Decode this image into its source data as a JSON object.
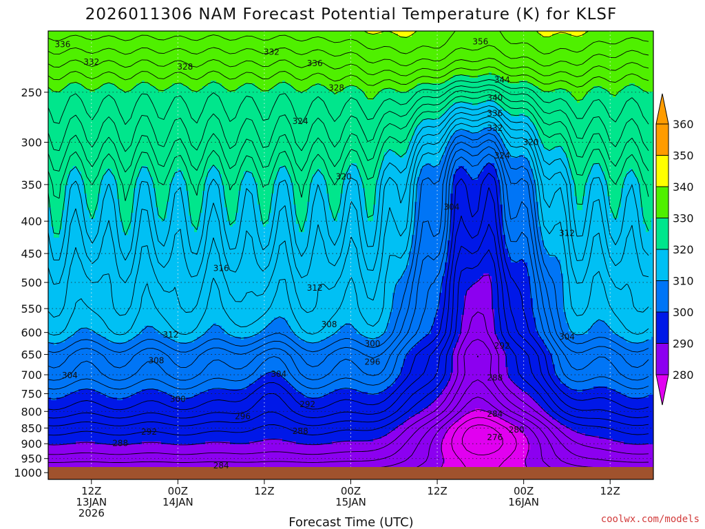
{
  "chart_data": {
    "type": "heatmap",
    "title": "2026011306 NAM Forecast Potential Temperature (K) for KLSF",
    "xlabel": "Forecast Time (UTC)",
    "ylabel": "",
    "y_axis": {
      "scale": "log",
      "inverted": true,
      "range": [
        200,
        1025
      ],
      "ticks": [
        250,
        300,
        350,
        400,
        450,
        500,
        550,
        600,
        650,
        700,
        750,
        800,
        850,
        900,
        950,
        1000
      ]
    },
    "x_axis": {
      "range_hours": [
        0,
        84
      ],
      "ticks": [
        {
          "hour": 6,
          "lines": [
            "12Z",
            "13JAN",
            "2026"
          ]
        },
        {
          "hour": 18,
          "lines": [
            "00Z",
            "14JAN"
          ]
        },
        {
          "hour": 30,
          "lines": [
            "12Z"
          ]
        },
        {
          "hour": 42,
          "lines": [
            "00Z",
            "15JAN"
          ]
        },
        {
          "hour": 54,
          "lines": [
            "12Z"
          ]
        },
        {
          "hour": 66,
          "lines": [
            "00Z",
            "16JAN"
          ]
        },
        {
          "hour": 78,
          "lines": [
            "12Z"
          ]
        }
      ]
    },
    "grid": true,
    "colorbar": {
      "placement": "right",
      "ticks": [
        360,
        350,
        340,
        330,
        320,
        310,
        300,
        290,
        280
      ],
      "bins": [
        {
          "from": 350,
          "to": 360,
          "color": "#ff9c00"
        },
        {
          "from": 340,
          "to": 350,
          "color": "#ffff00"
        },
        {
          "from": 330,
          "to": 340,
          "color": "#4ff000"
        },
        {
          "from": 320,
          "to": 330,
          "color": "#00e68c"
        },
        {
          "from": 310,
          "to": 320,
          "color": "#00c0f4"
        },
        {
          "from": 300,
          "to": 310,
          "color": "#0075f6"
        },
        {
          "from": 290,
          "to": 300,
          "color": "#0018e8"
        },
        {
          "from": 280,
          "to": 290,
          "color": "#8c00f0"
        },
        {
          "from": 270,
          "to": 280,
          "color": "#e100f0"
        }
      ]
    },
    "field_description": {
      "contour_interval_K": 2,
      "upper_profile": [
        {
          "p": 1000,
          "theta": 283
        },
        {
          "p": 950,
          "theta": 287
        },
        {
          "p": 900,
          "theta": 290
        },
        {
          "p": 850,
          "theta": 293
        },
        {
          "p": 800,
          "theta": 297
        },
        {
          "p": 750,
          "theta": 300
        },
        {
          "p": 700,
          "theta": 304
        },
        {
          "p": 650,
          "theta": 306
        },
        {
          "p": 600,
          "theta": 311
        },
        {
          "p": 550,
          "theta": 313
        },
        {
          "p": 500,
          "theta": 314
        },
        {
          "p": 450,
          "theta": 316
        },
        {
          "p": 400,
          "theta": 318
        },
        {
          "p": 350,
          "theta": 320
        },
        {
          "p": 300,
          "theta": 325
        },
        {
          "p": 250,
          "theta": 329
        },
        {
          "p": 200,
          "theta": 339
        }
      ]
    },
    "contour_labels": [
      {
        "text": "336",
        "hour": 2,
        "p": 210
      },
      {
        "text": "332",
        "hour": 6,
        "p": 224
      },
      {
        "text": "328",
        "hour": 19,
        "p": 228
      },
      {
        "text": "332",
        "hour": 31,
        "p": 216
      },
      {
        "text": "336",
        "hour": 37,
        "p": 225
      },
      {
        "text": "328",
        "hour": 40,
        "p": 246
      },
      {
        "text": "356",
        "hour": 60,
        "p": 208
      },
      {
        "text": "344",
        "hour": 63,
        "p": 239
      },
      {
        "text": "340",
        "hour": 62,
        "p": 255
      },
      {
        "text": "336",
        "hour": 62,
        "p": 270
      },
      {
        "text": "332",
        "hour": 62,
        "p": 285
      },
      {
        "text": "324",
        "hour": 35,
        "p": 278
      },
      {
        "text": "324",
        "hour": 63,
        "p": 315
      },
      {
        "text": "320",
        "hour": 67,
        "p": 300
      },
      {
        "text": "320",
        "hour": 41,
        "p": 340
      },
      {
        "text": "304",
        "hour": 56,
        "p": 380
      },
      {
        "text": "312",
        "hour": 72,
        "p": 418
      },
      {
        "text": "316",
        "hour": 24,
        "p": 475
      },
      {
        "text": "312",
        "hour": 37,
        "p": 510
      },
      {
        "text": "308",
        "hour": 39,
        "p": 583
      },
      {
        "text": "312",
        "hour": 17,
        "p": 605
      },
      {
        "text": "300",
        "hour": 45,
        "p": 625
      },
      {
        "text": "304",
        "hour": 72,
        "p": 610
      },
      {
        "text": "292",
        "hour": 63,
        "p": 630
      },
      {
        "text": "308",
        "hour": 15,
        "p": 665
      },
      {
        "text": "296",
        "hour": 45,
        "p": 668
      },
      {
        "text": "304",
        "hour": 3,
        "p": 702
      },
      {
        "text": "304",
        "hour": 32,
        "p": 698
      },
      {
        "text": "288",
        "hour": 62,
        "p": 708
      },
      {
        "text": "300",
        "hour": 18,
        "p": 765
      },
      {
        "text": "292",
        "hour": 36,
        "p": 780
      },
      {
        "text": "296",
        "hour": 27,
        "p": 815
      },
      {
        "text": "284",
        "hour": 62,
        "p": 808
      },
      {
        "text": "292",
        "hour": 14,
        "p": 862
      },
      {
        "text": "288",
        "hour": 35,
        "p": 860
      },
      {
        "text": "280",
        "hour": 65,
        "p": 855
      },
      {
        "text": "288",
        "hour": 10,
        "p": 898
      },
      {
        "text": "276",
        "hour": 62,
        "p": 880
      },
      {
        "text": "284",
        "hour": 24,
        "p": 975
      }
    ]
  },
  "credit": "coolwx.com/models",
  "colors": {
    "ground": "#a0522d",
    "background": "#ffffff"
  }
}
